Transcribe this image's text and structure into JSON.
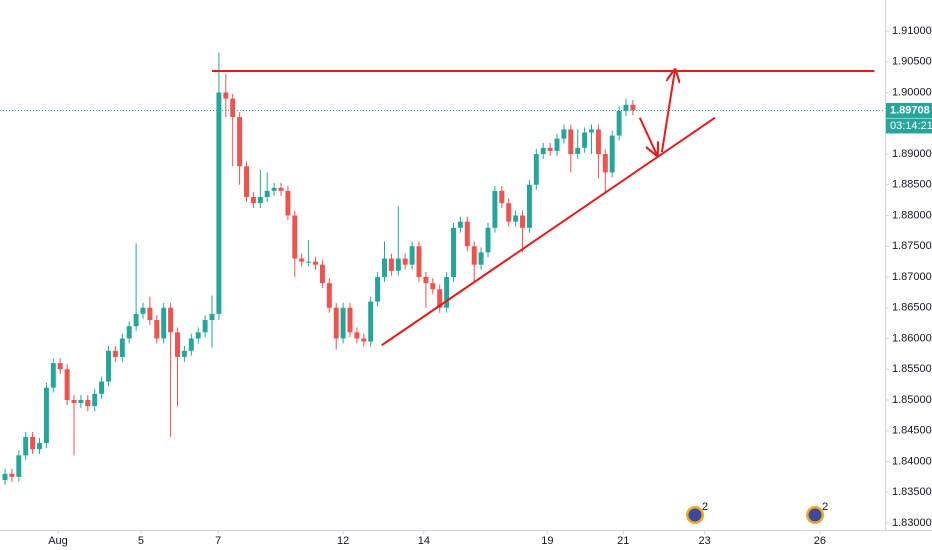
{
  "chart_data": {
    "type": "candlestick",
    "up_color": "#26a69a",
    "down_color": "#ef5350",
    "xlim": [
      -0.725,
      126.81
    ],
    "ylim": [
      1.82886,
      1.91504
    ],
    "xticks": [
      {
        "value": 7.68,
        "label": "Aug"
      },
      {
        "value": 19.7,
        "label": "5"
      },
      {
        "value": 30.9,
        "label": "7"
      },
      {
        "value": 49.0,
        "label": "12"
      },
      {
        "value": 60.7,
        "label": "14"
      },
      {
        "value": 78.6,
        "label": "19"
      },
      {
        "value": 89.6,
        "label": "21"
      },
      {
        "value": 101.4,
        "label": "23"
      },
      {
        "value": 118.1,
        "label": "26"
      }
    ],
    "yticks": [
      {
        "value": 1.83,
        "label": "1.83000"
      },
      {
        "value": 1.835,
        "label": "1.83500"
      },
      {
        "value": 1.84,
        "label": "1.84000"
      },
      {
        "value": 1.845,
        "label": "1.84500"
      },
      {
        "value": 1.85,
        "label": "1.85000"
      },
      {
        "value": 1.855,
        "label": "1.85500"
      },
      {
        "value": 1.86,
        "label": "1.86000"
      },
      {
        "value": 1.865,
        "label": "1.86500"
      },
      {
        "value": 1.87,
        "label": "1.87000"
      },
      {
        "value": 1.875,
        "label": "1.87500"
      },
      {
        "value": 1.88,
        "label": "1.88000"
      },
      {
        "value": 1.885,
        "label": "1.88500"
      },
      {
        "value": 1.89,
        "label": "1.89000"
      },
      {
        "value": 1.895,
        "label": "1.89500"
      },
      {
        "value": 1.9,
        "label": "1.90000"
      },
      {
        "value": 1.905,
        "label": "1.90500"
      },
      {
        "value": 1.91,
        "label": "1.91000"
      }
    ],
    "open": [
      1.837,
      1.838,
      1.8375,
      1.841,
      1.844,
      1.842,
      1.843,
      1.852,
      1.856,
      1.855,
      1.85,
      1.8495,
      1.85,
      1.849,
      1.851,
      1.853,
      1.858,
      1.857,
      1.86,
      1.862,
      1.864,
      1.865,
      1.863,
      1.86,
      1.865,
      1.861,
      1.857,
      1.858,
      1.86,
      1.861,
      1.863,
      1.864,
      1.9,
      1.899,
      1.896,
      1.888,
      1.883,
      1.882,
      1.883,
      1.884,
      1.8845,
      1.884,
      1.88,
      1.873,
      1.8725,
      1.8725,
      1.872,
      1.869,
      1.865,
      1.86,
      1.865,
      1.861,
      1.86,
      1.8595,
      1.866,
      1.87,
      1.873,
      1.871,
      1.873,
      1.872,
      1.875,
      1.87,
      1.869,
      1.868,
      1.865,
      1.87,
      1.878,
      1.879,
      1.875,
      1.872,
      1.874,
      1.878,
      1.884,
      1.882,
      1.879,
      1.88,
      1.878,
      1.885,
      1.89,
      1.891,
      1.8905,
      1.8925,
      1.894,
      1.89,
      1.891,
      1.8935,
      1.894,
      1.89,
      1.887,
      1.893,
      1.897,
      1.898
    ],
    "high": [
      1.8388,
      1.8388,
      1.8418,
      1.8448,
      1.8448,
      1.8438,
      1.8528,
      1.8568,
      1.8568,
      1.8558,
      1.8508,
      1.8508,
      1.8508,
      1.8518,
      1.8538,
      1.8588,
      1.8588,
      1.8608,
      1.8628,
      1.8755,
      1.8658,
      1.8668,
      1.8638,
      1.8658,
      1.8658,
      1.8618,
      1.8588,
      1.8608,
      1.8618,
      1.8638,
      1.867,
      1.9065,
      1.903,
      1.8998,
      1.8968,
      1.8888,
      1.8838,
      1.8875,
      1.887,
      1.8853,
      1.8853,
      1.8848,
      1.8808,
      1.8738,
      1.876,
      1.8733,
      1.8728,
      1.8698,
      1.8658,
      1.8658,
      1.8658,
      1.8618,
      1.8608,
      1.8668,
      1.8708,
      1.8758,
      1.8738,
      1.8815,
      1.8738,
      1.8758,
      1.8758,
      1.8708,
      1.8698,
      1.8688,
      1.8708,
      1.8788,
      1.8798,
      1.8798,
      1.8758,
      1.8748,
      1.8788,
      1.8848,
      1.8848,
      1.8828,
      1.8808,
      1.8808,
      1.8858,
      1.8908,
      1.8918,
      1.8918,
      1.8933,
      1.8948,
      1.8948,
      1.894,
      1.8943,
      1.8948,
      1.8948,
      1.8908,
      1.8938,
      1.8978,
      1.899,
      1.8988
    ],
    "low": [
      1.8362,
      1.8367,
      1.8367,
      1.8402,
      1.8412,
      1.8412,
      1.8422,
      1.8512,
      1.8542,
      1.8492,
      1.841,
      1.8487,
      1.8482,
      1.8482,
      1.8502,
      1.8522,
      1.8562,
      1.8562,
      1.8592,
      1.8612,
      1.8632,
      1.8622,
      1.8592,
      1.8592,
      1.844,
      1.849,
      1.8562,
      1.8572,
      1.8592,
      1.8602,
      1.8585,
      1.863,
      1.896,
      1.888,
      1.885,
      1.8822,
      1.8812,
      1.8812,
      1.8822,
      1.8832,
      1.8832,
      1.8792,
      1.87,
      1.8717,
      1.8717,
      1.8712,
      1.8682,
      1.8642,
      1.8582,
      1.8592,
      1.8602,
      1.8592,
      1.8587,
      1.8587,
      1.8652,
      1.8692,
      1.8702,
      1.8702,
      1.8712,
      1.8712,
      1.8692,
      1.865,
      1.8672,
      1.8642,
      1.8642,
      1.8692,
      1.8772,
      1.8742,
      1.869,
      1.8712,
      1.8732,
      1.8772,
      1.8812,
      1.8782,
      1.8782,
      1.874,
      1.8772,
      1.8842,
      1.8892,
      1.8897,
      1.8897,
      1.8917,
      1.887,
      1.8892,
      1.8902,
      1.89,
      1.886,
      1.8835,
      1.8862,
      1.8922,
      1.8962,
      1.8963
    ],
    "close": [
      1.838,
      1.8375,
      1.841,
      1.844,
      1.842,
      1.843,
      1.852,
      1.856,
      1.855,
      1.85,
      1.8495,
      1.85,
      1.849,
      1.851,
      1.853,
      1.858,
      1.857,
      1.86,
      1.862,
      1.864,
      1.865,
      1.863,
      1.86,
      1.865,
      1.861,
      1.857,
      1.858,
      1.86,
      1.861,
      1.863,
      1.864,
      1.9,
      1.899,
      1.896,
      1.888,
      1.883,
      1.882,
      1.883,
      1.884,
      1.8845,
      1.884,
      1.88,
      1.873,
      1.8725,
      1.8725,
      1.872,
      1.869,
      1.865,
      1.86,
      1.865,
      1.861,
      1.86,
      1.8595,
      1.866,
      1.87,
      1.873,
      1.871,
      1.873,
      1.872,
      1.875,
      1.87,
      1.869,
      1.868,
      1.865,
      1.87,
      1.878,
      1.879,
      1.875,
      1.872,
      1.874,
      1.878,
      1.884,
      1.882,
      1.879,
      1.88,
      1.878,
      1.885,
      1.89,
      1.891,
      1.8905,
      1.8925,
      1.894,
      1.89,
      1.891,
      1.8935,
      1.894,
      1.89,
      1.887,
      1.893,
      1.897,
      1.898,
      1.8971
    ],
    "last_price": {
      "value": 1.89708,
      "label": "1.89708"
    },
    "countdown": "03:14:21",
    "drawings": [
      {
        "kind": "line",
        "color": "#e31b1b",
        "x": [
          30.0,
          126.0
        ],
        "y": [
          1.9035,
          1.9035
        ]
      },
      {
        "kind": "line",
        "color": "#e31b1b",
        "x": [
          54.6,
          102.9
        ],
        "y": [
          1.8589,
          1.8959
        ]
      },
      {
        "kind": "arrow",
        "color": "#e31b1b",
        "x": [
          92.0,
          94.5
        ],
        "y": [
          1.8959,
          1.8898
        ]
      },
      {
        "kind": "arrow",
        "color": "#e31b1b",
        "x": [
          95.2,
          97.1
        ],
        "y": [
          1.8903,
          1.9037
        ]
      }
    ],
    "events": [
      {
        "x": 100.0,
        "label": "2"
      },
      {
        "x": 117.4,
        "label": "2"
      }
    ]
  }
}
